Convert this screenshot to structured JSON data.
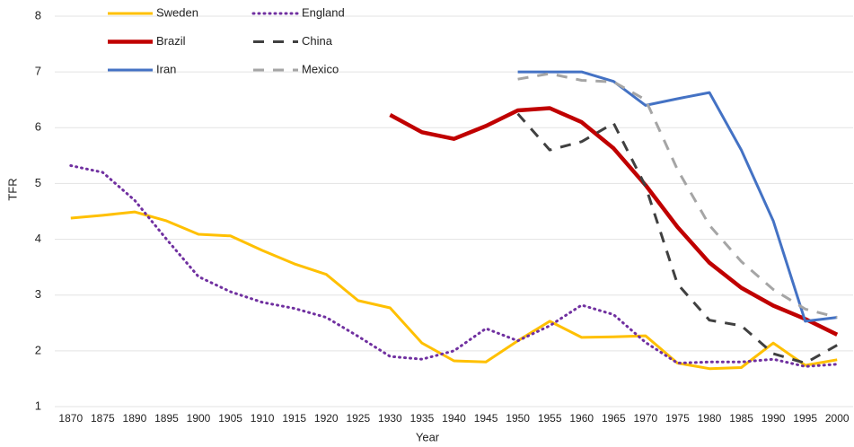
{
  "chart_data": {
    "type": "line",
    "x_label": "Year",
    "y_label": "TFR",
    "categories": [
      "1870",
      "1875",
      "1890",
      "1895",
      "1900",
      "1905",
      "1910",
      "1915",
      "1920",
      "1925",
      "1930",
      "1935",
      "1940",
      "1945",
      "1950",
      "1955",
      "1960",
      "1965",
      "1970",
      "1975",
      "1980",
      "1985",
      "1990",
      "1995",
      "2000"
    ],
    "ylim": [
      1,
      8
    ],
    "yticks": [
      1,
      2,
      3,
      4,
      5,
      6,
      7,
      8
    ],
    "grid": true,
    "series": [
      {
        "name": "Sweden",
        "color": "#FFC000",
        "line_style": "solid",
        "line_width": 3,
        "values": [
          4.38,
          4.43,
          4.49,
          4.33,
          4.09,
          4.06,
          3.8,
          3.56,
          3.37,
          2.9,
          2.77,
          2.14,
          1.82,
          1.8,
          2.18,
          2.53,
          2.24,
          2.25,
          2.27,
          1.78,
          1.68,
          1.7,
          2.14,
          1.74,
          1.84
        ]
      },
      {
        "name": "England",
        "color": "#7030A0",
        "line_style": "dotted",
        "line_width": 3,
        "values": [
          5.32,
          5.2,
          4.7,
          4.0,
          3.33,
          3.06,
          2.87,
          2.76,
          2.6,
          2.26,
          1.9,
          1.85,
          2.0,
          2.4,
          2.18,
          2.45,
          2.82,
          2.65,
          2.15,
          1.78,
          1.8,
          1.8,
          1.85,
          1.72,
          1.76
        ]
      },
      {
        "name": "Brazil",
        "color": "#C00000",
        "line_style": "solid",
        "line_width": 4.5,
        "values": [
          null,
          null,
          null,
          null,
          null,
          null,
          null,
          null,
          null,
          null,
          6.23,
          5.92,
          5.8,
          6.03,
          6.31,
          6.35,
          6.1,
          5.63,
          4.97,
          4.22,
          3.58,
          3.13,
          2.81,
          2.57,
          2.29
        ]
      },
      {
        "name": "China",
        "color": "#404040",
        "line_style": "dashed",
        "line_width": 3,
        "values": [
          null,
          null,
          null,
          null,
          null,
          null,
          null,
          null,
          null,
          null,
          null,
          null,
          null,
          null,
          6.25,
          5.6,
          5.75,
          6.08,
          4.95,
          3.2,
          2.55,
          2.45,
          1.95,
          1.78,
          2.1
        ]
      },
      {
        "name": "Iran",
        "color": "#4472C4",
        "line_style": "solid",
        "line_width": 3,
        "values": [
          null,
          null,
          null,
          null,
          null,
          null,
          null,
          null,
          null,
          null,
          null,
          null,
          null,
          null,
          7.0,
          7.0,
          7.0,
          6.83,
          6.4,
          6.52,
          6.63,
          5.6,
          4.33,
          2.53,
          2.6
        ]
      },
      {
        "name": "Mexico",
        "color": "#A5A5A5",
        "line_style": "dashed",
        "line_width": 3,
        "values": [
          null,
          null,
          null,
          null,
          null,
          null,
          null,
          null,
          null,
          null,
          null,
          null,
          null,
          null,
          6.87,
          6.97,
          6.85,
          6.82,
          6.5,
          5.25,
          4.25,
          3.6,
          3.1,
          2.75,
          2.6
        ]
      }
    ]
  }
}
